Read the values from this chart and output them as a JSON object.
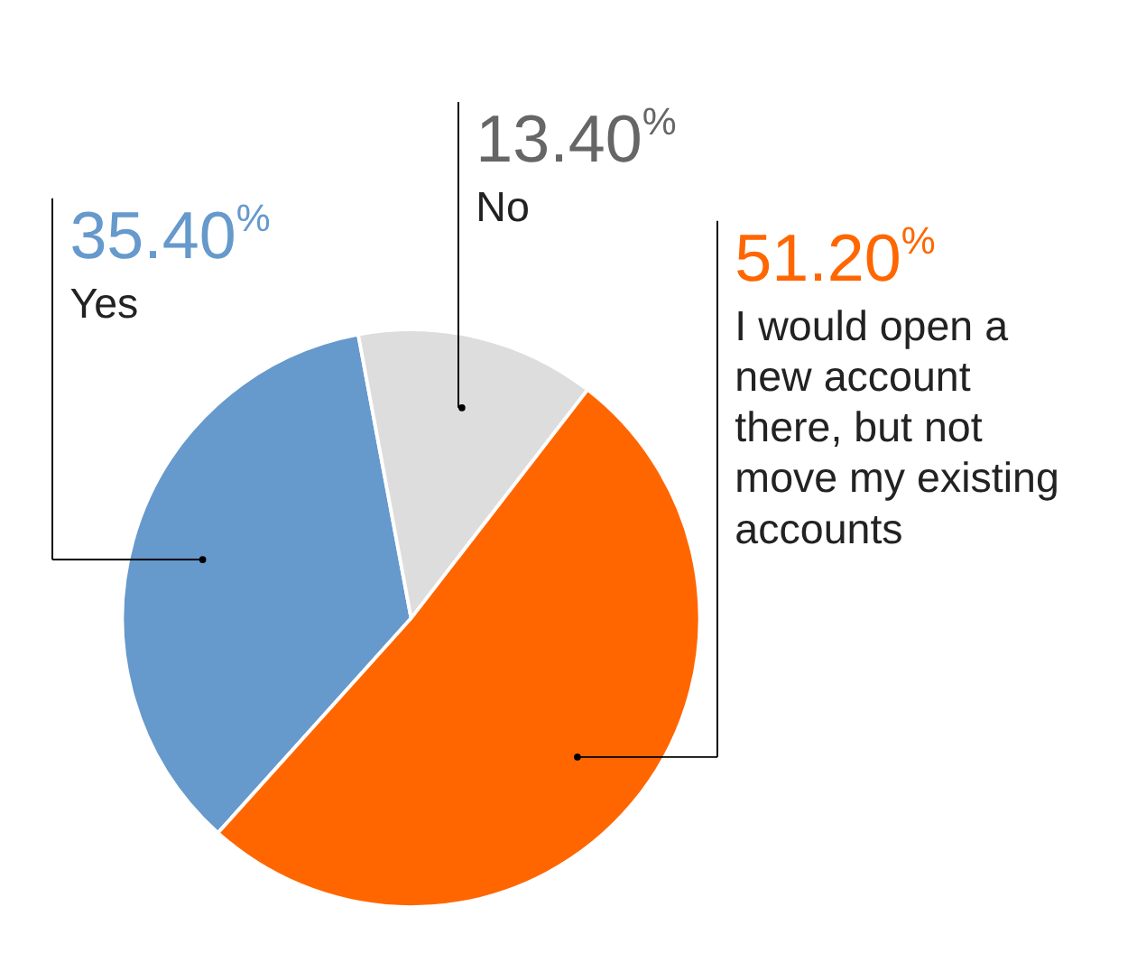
{
  "chart_data": {
    "type": "pie",
    "categories": [
      "Yes",
      "No",
      "I would open a new account there, but not move my existing accounts"
    ],
    "values": [
      35.4,
      13.4,
      51.2
    ],
    "colors": [
      "#6699cc",
      "#dddddd",
      "#ff6600"
    ],
    "value_labels": [
      "35.40$^{%}$",
      "13.40$^{%}$",
      "51.20$^{%}$"
    ]
  }
}
